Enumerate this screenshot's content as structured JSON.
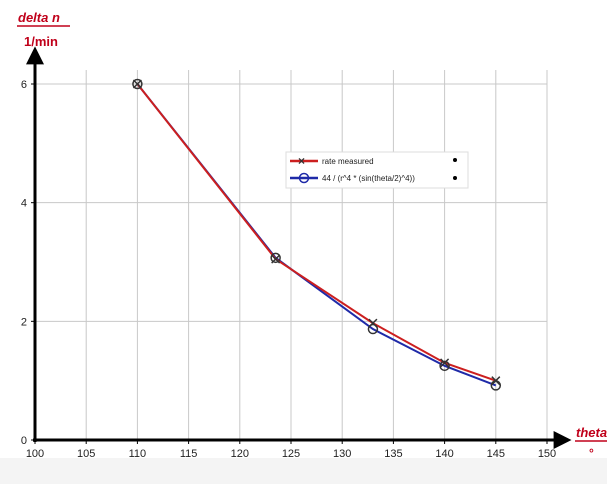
{
  "chart_data": {
    "type": "line",
    "ylabel": "delta n",
    "yunit": "1/min",
    "xlabel": "theta",
    "xunit": "°",
    "xlim": [
      100,
      150
    ],
    "ylim": [
      0,
      6
    ],
    "x_ticks": [
      100,
      105,
      110,
      115,
      120,
      125,
      130,
      135,
      140,
      145,
      150
    ],
    "y_ticks": [
      0,
      2,
      4,
      6
    ],
    "grid": true,
    "legend_placement": "upper-right-center",
    "series": [
      {
        "name": "rate measured",
        "color": "#cc1f1f",
        "marker": "x",
        "points": [
          [
            110,
            6.0
          ],
          [
            123.5,
            3.05
          ],
          [
            133,
            1.97
          ],
          [
            140,
            1.3
          ],
          [
            145,
            1.0
          ]
        ]
      },
      {
        "name": "44 / (r^4 * (sin(theta/2)^4))",
        "color": "#1f2aa8",
        "marker": "circle",
        "points": [
          [
            110,
            6.0
          ],
          [
            123.5,
            3.07
          ],
          [
            133,
            1.87
          ],
          [
            140,
            1.25
          ],
          [
            145,
            0.92
          ]
        ]
      }
    ],
    "axis_color": "#000000",
    "label_color": "#c0001a",
    "grid_color": "#c8c8c8"
  }
}
